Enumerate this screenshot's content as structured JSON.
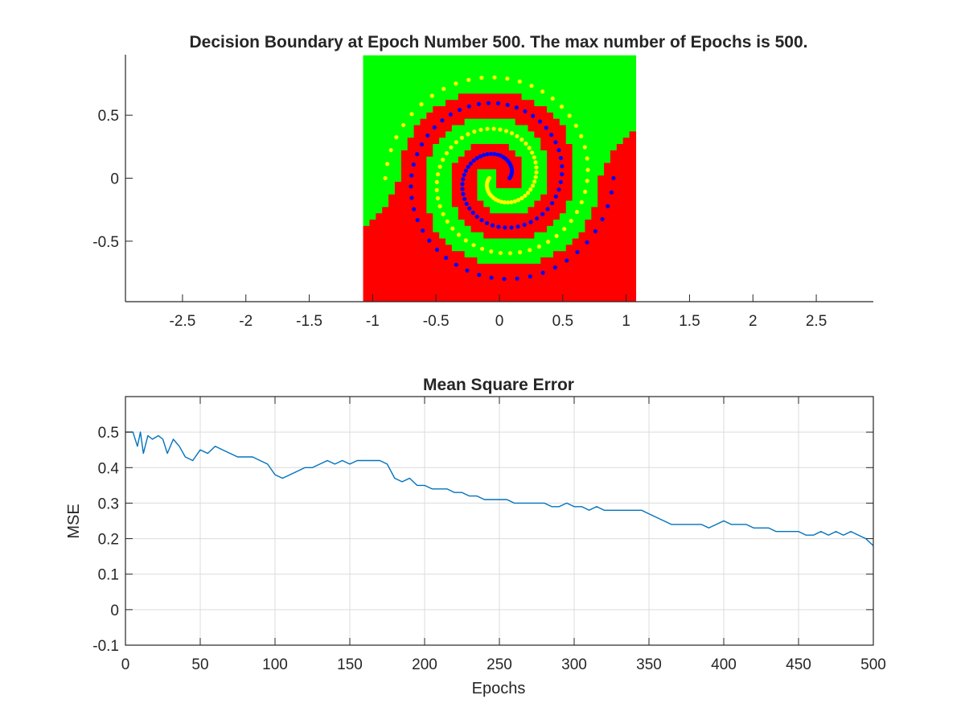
{
  "colors": {
    "region_class1": "#ff0000",
    "region_class2": "#00ff00",
    "points_class1": "#0000ff",
    "points_class2": "#ffff00",
    "mse_line": "#0072bd",
    "grid": "#dcdcdc",
    "axis": "#262626"
  },
  "chart_data": [
    {
      "type": "scatter",
      "title": "Decision Boundary at Epoch Number 500. The max number of Epochs is 500.",
      "xlabel": "",
      "ylabel": "",
      "xlim": [
        -2.95,
        2.95
      ],
      "ylim": [
        -0.98,
        0.98
      ],
      "xticks": [
        -2.5,
        -2,
        -1.5,
        -1,
        -0.5,
        0,
        0.5,
        1,
        1.5,
        2,
        2.5
      ],
      "xtick_labels": [
        "-2.5",
        "-2",
        "-1.5",
        "-1",
        "-0.5",
        "0",
        "0.5",
        "1",
        "1.5",
        "2",
        "2.5"
      ],
      "yticks": [
        -0.5,
        0,
        0.5
      ],
      "ytick_labels": [
        "-0.5",
        "0",
        "0.5"
      ],
      "grid": false,
      "decision_region": {
        "x_range": [
          -1.05,
          1.05
        ],
        "y_range": [
          -0.95,
          0.95
        ],
        "step": 0.05,
        "classes": [
          "red",
          "green"
        ]
      },
      "series": [
        {
          "class": "blue",
          "spiral_turns": 2.0,
          "num_points": 100,
          "points_xy_sample": [
            [
              0.1,
              0.15
            ],
            [
              0.22,
              0.02
            ],
            [
              0.05,
              -0.32
            ],
            [
              -0.32,
              -0.05
            ],
            [
              -0.4,
              0.45
            ],
            [
              0.58,
              0.1
            ],
            [
              0.3,
              -0.55
            ],
            [
              -0.65,
              -0.35
            ],
            [
              0.85,
              0.25
            ],
            [
              -0.4,
              -0.8
            ]
          ]
        },
        {
          "class": "yellow",
          "spiral_turns": 2.0,
          "num_points": 100,
          "points_xy_sample": [
            [
              -0.1,
              -0.12
            ],
            [
              -0.2,
              0.0
            ],
            [
              0.02,
              0.3
            ],
            [
              0.35,
              0.05
            ],
            [
              0.4,
              -0.45
            ],
            [
              -0.58,
              -0.1
            ],
            [
              -0.3,
              0.55
            ],
            [
              0.65,
              0.35
            ],
            [
              -0.85,
              -0.25
            ],
            [
              0.4,
              0.8
            ]
          ]
        }
      ]
    },
    {
      "type": "line",
      "title": "Mean Square Error",
      "xlabel": "Epochs",
      "ylabel": "MSE",
      "xlim": [
        0,
        500
      ],
      "ylim": [
        -0.1,
        0.6
      ],
      "xticks": [
        0,
        50,
        100,
        150,
        200,
        250,
        300,
        350,
        400,
        450,
        500
      ],
      "xtick_labels": [
        "0",
        "50",
        "100",
        "150",
        "200",
        "250",
        "300",
        "350",
        "400",
        "450",
        "500"
      ],
      "yticks": [
        -0.1,
        0,
        0.1,
        0.2,
        0.3,
        0.4,
        0.5
      ],
      "ytick_labels": [
        "-0.1",
        "0",
        "0.1",
        "0.2",
        "0.3",
        "0.4",
        "0.5"
      ],
      "grid": true,
      "x": [
        0,
        5,
        8,
        10,
        12,
        15,
        18,
        22,
        25,
        28,
        32,
        36,
        40,
        45,
        50,
        55,
        60,
        65,
        70,
        75,
        80,
        85,
        90,
        95,
        100,
        105,
        110,
        115,
        120,
        125,
        130,
        135,
        140,
        145,
        150,
        155,
        160,
        165,
        170,
        175,
        180,
        185,
        190,
        195,
        200,
        205,
        210,
        215,
        220,
        225,
        230,
        235,
        240,
        245,
        250,
        255,
        260,
        265,
        270,
        275,
        280,
        285,
        290,
        295,
        300,
        305,
        310,
        315,
        320,
        325,
        330,
        335,
        340,
        345,
        350,
        355,
        360,
        365,
        370,
        375,
        380,
        385,
        390,
        395,
        400,
        405,
        410,
        415,
        420,
        425,
        430,
        435,
        440,
        445,
        450,
        455,
        460,
        465,
        470,
        475,
        480,
        485,
        490,
        495,
        500
      ],
      "y": [
        0.5,
        0.5,
        0.46,
        0.5,
        0.44,
        0.49,
        0.48,
        0.49,
        0.48,
        0.44,
        0.48,
        0.46,
        0.43,
        0.42,
        0.45,
        0.44,
        0.46,
        0.45,
        0.44,
        0.43,
        0.43,
        0.43,
        0.42,
        0.41,
        0.38,
        0.37,
        0.38,
        0.39,
        0.4,
        0.4,
        0.41,
        0.42,
        0.41,
        0.42,
        0.41,
        0.42,
        0.42,
        0.42,
        0.42,
        0.41,
        0.37,
        0.36,
        0.37,
        0.35,
        0.35,
        0.34,
        0.34,
        0.34,
        0.33,
        0.33,
        0.32,
        0.32,
        0.31,
        0.31,
        0.31,
        0.31,
        0.3,
        0.3,
        0.3,
        0.3,
        0.3,
        0.29,
        0.29,
        0.3,
        0.29,
        0.29,
        0.28,
        0.29,
        0.28,
        0.28,
        0.28,
        0.28,
        0.28,
        0.28,
        0.27,
        0.26,
        0.25,
        0.24,
        0.24,
        0.24,
        0.24,
        0.24,
        0.23,
        0.24,
        0.25,
        0.24,
        0.24,
        0.24,
        0.23,
        0.23,
        0.23,
        0.22,
        0.22,
        0.22,
        0.22,
        0.21,
        0.21,
        0.22,
        0.21,
        0.22,
        0.21,
        0.22,
        0.21,
        0.2,
        0.18
      ]
    }
  ]
}
